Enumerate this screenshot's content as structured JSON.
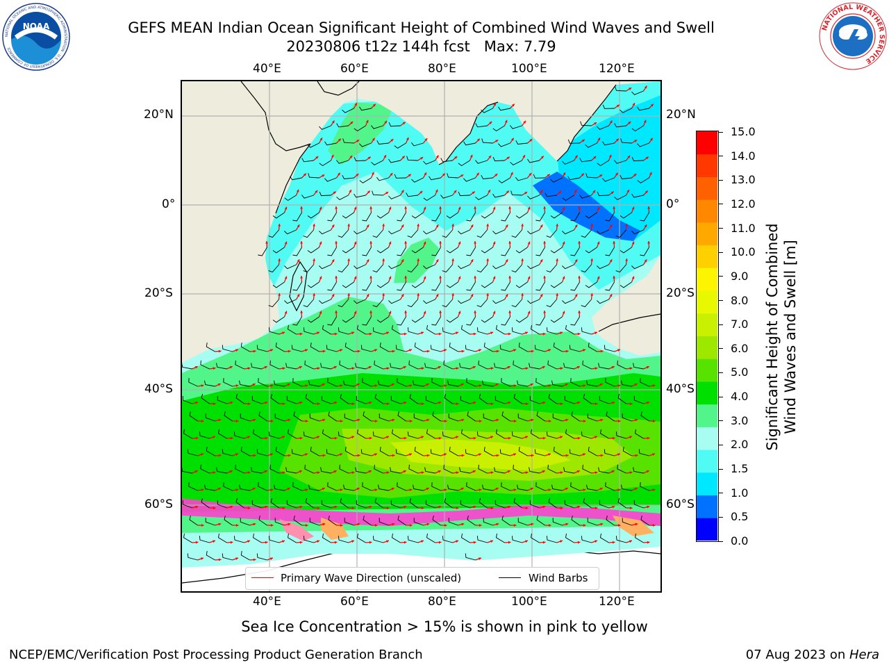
{
  "title": {
    "line1": "GEFS MEAN Indian Ocean Significant Height of Combined Wind Waves and Swell",
    "line2": "20230806 t12z 144h fcst   Max: 7.79"
  },
  "logos": {
    "noaa_text": "NOAA",
    "noaa_ring_text": "NATIONAL OCEANIC AND ATMOSPHERIC ADMINISTRATION · U.S. DEPARTMENT OF COMMERCE",
    "nws_ring_text": "NATIONAL WEATHER SERVICE"
  },
  "map": {
    "lon_ticks": [
      "40°E",
      "60°E",
      "80°E",
      "100°E",
      "120°E"
    ],
    "lon_values": [
      40,
      60,
      80,
      100,
      120
    ],
    "lat_ticks": [
      "20°N",
      "0°",
      "20°S",
      "40°S",
      "60°S"
    ],
    "lat_values": [
      20,
      0,
      -20,
      -40,
      -60
    ],
    "lon_range": [
      20,
      130
    ],
    "grid": true,
    "colors": {
      "land": "#eeecdc",
      "ice_white": "#ffffff",
      "gridline": "#b0b0b0"
    }
  },
  "colorbar": {
    "labels": [
      "15.0",
      "14.0",
      "13.0",
      "12.0",
      "11.0",
      "10.0",
      "9.0",
      "8.0",
      "7.0",
      "6.0",
      "5.0",
      "4.0",
      "3.0",
      "2.0",
      "1.5",
      "1.0",
      "0.5",
      "0.0"
    ],
    "colors": [
      "#0000ff",
      "#0072ff",
      "#00e8ff",
      "#50fbf3",
      "#a8fdf2",
      "#52f58a",
      "#00e000",
      "#58e200",
      "#9ee800",
      "#c8f000",
      "#e8f800",
      "#fcf400",
      "#ffd000",
      "#ffa800",
      "#ff8800",
      "#ff6000",
      "#ff3800",
      "#ff0000"
    ],
    "title_line1": "Significant Height of Combined",
    "title_line2": "Wind Waves and Swell [m]"
  },
  "legend": {
    "item1": "Primary Wave Direction (unscaled)",
    "item1_color": "#ff0000",
    "item2": "Wind Barbs",
    "item2_color": "#000000"
  },
  "note": "Sea Ice Concentration > 15% is shown in pink to yellow",
  "footer": {
    "left": "NCEP/EMC/Verification Post Processing Product Generation Branch",
    "right_prefix": "07 Aug 2023 on ",
    "right_host": "Hera"
  }
}
